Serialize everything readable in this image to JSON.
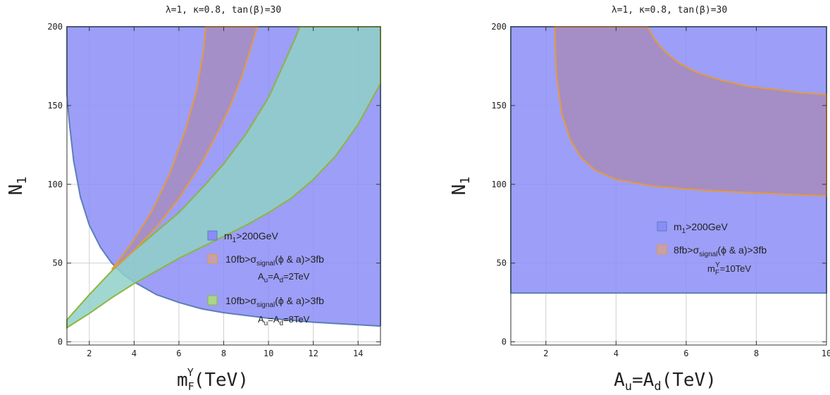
{
  "colors": {
    "blue_fill": "#8b8df7",
    "blue_edge": "#5c7fb8",
    "orange_fill": "#a88ab8",
    "orange_edge": "#e69a3a",
    "green_fill": "#8fd0c8",
    "green_fill_alt": "#a9d68a",
    "green_edge": "#8fb53a",
    "grid": "#cfcfcf"
  },
  "chart_data": [
    {
      "type": "area",
      "title": "λ=1, κ=0.8, tan(β)=30",
      "xlabel": "m",
      "xlabel_sub": "F",
      "xlabel_sup": "Y",
      "xlabel_units": "(TeV)",
      "ylabel": "N",
      "ylabel_sub": "1",
      "xlim": [
        1,
        15
      ],
      "ylim": [
        -2,
        200
      ],
      "xticks": [
        2,
        4,
        6,
        8,
        10,
        12,
        14
      ],
      "yticks": [
        0,
        50,
        100,
        150,
        200
      ],
      "grid": true,
      "legend": [
        {
          "color": "blue",
          "label_main": "m",
          "label_sub": "1",
          "label_rest": ">200GeV"
        },
        {
          "color": "orange",
          "label_main": "10fb>σ",
          "label_sub": "signal",
          "label_rest": "(ϕ & a)>3fb",
          "note": "A",
          "note_sub1": "u",
          "note_mid": "=A",
          "note_sub2": "d",
          "note_rest": "=2TeV"
        },
        {
          "color": "green",
          "label_main": "10fb>σ",
          "label_sub": "signal",
          "label_rest": "(ϕ & a)>3fb",
          "note": "A",
          "note_sub1": "u",
          "note_mid": "=A",
          "note_sub2": "d",
          "note_rest": "=8TeV"
        }
      ],
      "series": [
        {
          "name": "m1>200GeV",
          "color": "blue",
          "boundary_x": [
            1.0,
            1.1,
            1.3,
            1.6,
            2.0,
            2.5,
            3.0,
            3.5,
            4.0,
            5.0,
            6.0,
            7.0,
            8.0,
            10.0,
            12.0,
            15.0
          ],
          "boundary_y": [
            157,
            140,
            115,
            92,
            74,
            60,
            50,
            43,
            38,
            30,
            25,
            21,
            18.5,
            15,
            12.5,
            10
          ]
        },
        {
          "name": "A=2TeV band",
          "color": "orange",
          "lower_x": [
            3.2,
            4.0,
            5.0,
            6.0,
            7.0,
            7.8,
            8.3,
            8.8,
            9.2,
            9.5
          ],
          "lower_y": [
            48,
            58,
            73,
            91,
            113,
            135,
            150,
            168,
            186,
            200
          ],
          "upper_x": [
            3.0,
            3.5,
            4.0,
            4.8,
            5.6,
            6.3,
            6.8,
            7.1,
            7.2
          ],
          "upper_y": [
            46,
            55,
            65,
            83,
            107,
            135,
            160,
            185,
            200
          ]
        },
        {
          "name": "A=8TeV band",
          "color": "green",
          "lower_x": [
            1.0,
            2.0,
            3.0,
            4.0,
            5.0,
            6.0,
            7.0,
            8.0,
            9.0,
            10.0,
            11.0,
            12.0,
            13.0,
            14.0,
            15.0
          ],
          "lower_y": [
            9,
            18,
            28,
            37,
            45,
            53,
            60,
            67,
            74,
            82,
            91,
            103,
            118,
            138,
            164
          ],
          "upper_x": [
            1.0,
            2.0,
            3.0,
            4.0,
            5.0,
            6.0,
            7.0,
            8.0,
            9.0,
            10.0,
            10.7,
            11.2,
            11.4,
            15.0
          ],
          "upper_y": [
            14,
            30,
            45,
            58,
            70,
            82,
            97,
            113,
            132,
            155,
            177,
            193,
            200,
            200
          ]
        }
      ]
    },
    {
      "type": "area",
      "title": "λ=1, κ=0.8, tan(β)=30",
      "xlabel": "A",
      "xlabel_sub1": "u",
      "xlabel_mid": "=A",
      "xlabel_sub2": "d",
      "xlabel_units": "(TeV)",
      "ylabel": "N",
      "ylabel_sub": "1",
      "xlim": [
        1,
        10
      ],
      "ylim": [
        -2,
        200
      ],
      "xticks": [
        2,
        4,
        6,
        8,
        10
      ],
      "yticks": [
        0,
        50,
        100,
        150,
        200
      ],
      "grid": true,
      "legend": [
        {
          "color": "blue",
          "label_main": "m",
          "label_sub": "1",
          "label_rest": ">200GeV"
        },
        {
          "color": "orange",
          "label_main": "8fb>σ",
          "label_sub": "signal",
          "label_rest": "(ϕ & a)>3fb",
          "note": "m",
          "note_sub1": "F",
          "note_sup": "Y",
          "note_rest": "=10TeV"
        }
      ],
      "series": [
        {
          "name": "m1>200GeV",
          "color": "blue",
          "rect_x": [
            1.0,
            10.0
          ],
          "rect_y": [
            31,
            200
          ]
        },
        {
          "name": "8fb band",
          "color": "orange",
          "left_x": [
            2.25,
            2.3,
            2.45,
            2.7,
            3.0,
            3.4,
            4.0,
            5.0,
            6.0,
            7.0,
            8.0,
            9.0,
            10.0
          ],
          "left_y": [
            200,
            170,
            145,
            128,
            117,
            109,
            103,
            99,
            97,
            95.5,
            94.5,
            93.5,
            92.5
          ],
          "right_x": [
            4.9,
            5.1,
            5.4,
            5.8,
            6.3,
            7.0,
            7.8,
            8.6,
            9.3,
            10.0
          ],
          "right_y": [
            200,
            192,
            184,
            177,
            171,
            166,
            162,
            160,
            158,
            157
          ]
        }
      ]
    }
  ]
}
